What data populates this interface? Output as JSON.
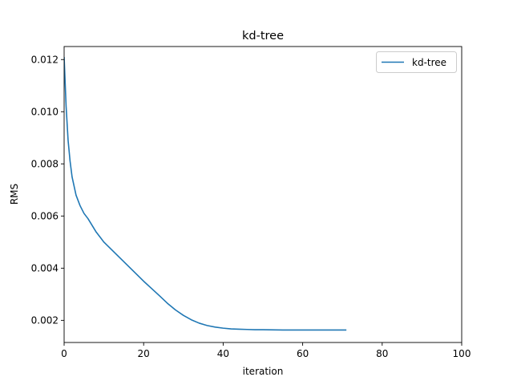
{
  "chart_data": {
    "type": "line",
    "title": "kd-tree",
    "xlabel": "iteration",
    "ylabel": "RMS",
    "xlim": [
      0,
      100
    ],
    "ylim": [
      0.00115,
      0.0125
    ],
    "xticks": [
      0,
      20,
      40,
      60,
      80,
      100
    ],
    "xtick_labels": [
      "0",
      "20",
      "40",
      "60",
      "80",
      "100"
    ],
    "yticks": [
      0.002,
      0.004,
      0.006,
      0.008,
      0.01,
      0.012
    ],
    "ytick_labels": [
      "0.002",
      "0.004",
      "0.006",
      "0.008",
      "0.010",
      "0.012"
    ],
    "grid": false,
    "legend": {
      "placement": "top-right",
      "entries": [
        "kd-tree"
      ]
    },
    "series": [
      {
        "name": "kd-tree",
        "color": "#1f77b4",
        "x": [
          0,
          0.5,
          1,
          1.5,
          2,
          3,
          4,
          5,
          6,
          8,
          10,
          12,
          14,
          16,
          18,
          20,
          22,
          24,
          26,
          28,
          30,
          32,
          34,
          36,
          38,
          40,
          42,
          44,
          46,
          48,
          50,
          55,
          60,
          65,
          71
        ],
        "y": [
          0.0121,
          0.0102,
          0.0089,
          0.0081,
          0.0075,
          0.0068,
          0.0064,
          0.0061,
          0.0059,
          0.0054,
          0.005,
          0.0047,
          0.0044,
          0.0041,
          0.0038,
          0.0035,
          0.00322,
          0.00294,
          0.00265,
          0.0024,
          0.00219,
          0.00202,
          0.00189,
          0.0018,
          0.00174,
          0.0017,
          0.00167,
          0.00166,
          0.00165,
          0.00164,
          0.00164,
          0.00163,
          0.00163,
          0.00163,
          0.00163
        ]
      }
    ]
  }
}
